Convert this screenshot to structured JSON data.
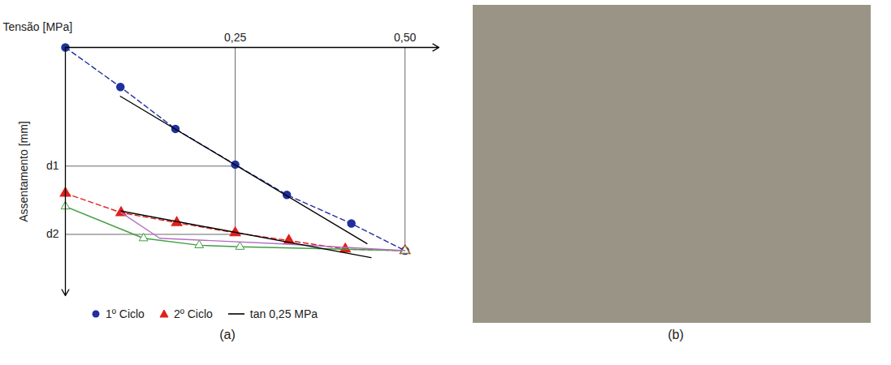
{
  "chart_data": {
    "type": "line",
    "x_label": "Tensão [MPa]",
    "y_label": "Assentamento [mm]",
    "xlim": [
      0,
      0.55
    ],
    "xticks": [
      {
        "value": 0.25,
        "label": "0,25"
      },
      {
        "value": 0.5,
        "label": "0,50"
      }
    ],
    "ylim": [
      0,
      3.2
    ],
    "yticks": [
      {
        "value": 1.53,
        "label": "d1"
      },
      {
        "value": 2.41,
        "label": "d2"
      }
    ],
    "legend": "bottom",
    "series": [
      {
        "name": "1º Ciclo",
        "color": "#1f2f9e",
        "marker": "circle",
        "line_style": "dashed",
        "x": [
          0,
          0.081,
          0.162,
          0.25,
          0.326,
          0.421,
          0.5
        ],
        "values": [
          0,
          0.51,
          1.05,
          1.51,
          1.9,
          2.27,
          2.62
        ]
      },
      {
        "name": "2º Ciclo",
        "color": "#e0201b",
        "marker": "triangle",
        "line_style": "dashed",
        "x": [
          0,
          0.082,
          0.164,
          0.25,
          0.329,
          0.412,
          0.5
        ],
        "values": [
          1.88,
          2.13,
          2.26,
          2.39,
          2.49,
          2.6,
          2.62
        ]
      },
      {
        "color": "#3f9f3f",
        "marker": "triangle-open",
        "line_style": "solid",
        "x": [
          0,
          0.115,
          0.197,
          0.257,
          0.5
        ],
        "values": [
          2.05,
          2.46,
          2.55,
          2.57,
          2.62
        ]
      },
      {
        "color": "#b36fc4",
        "marker": "none",
        "line_style": "solid",
        "x": [
          0.082,
          0.139,
          0.315,
          0.5
        ],
        "values": [
          2.13,
          2.46,
          2.53,
          2.62
        ]
      },
      {
        "name": "tan 0,25 MPa",
        "color": "#000000",
        "marker": "none",
        "line_style": "solid",
        "x": [
          0.081,
          0.444,
          null,
          0.082,
          0.45
        ],
        "values": [
          0.63,
          2.53,
          null,
          2.11,
          2.71
        ]
      }
    ]
  },
  "panel_labels": [
    "(a)",
    "(b)"
  ]
}
